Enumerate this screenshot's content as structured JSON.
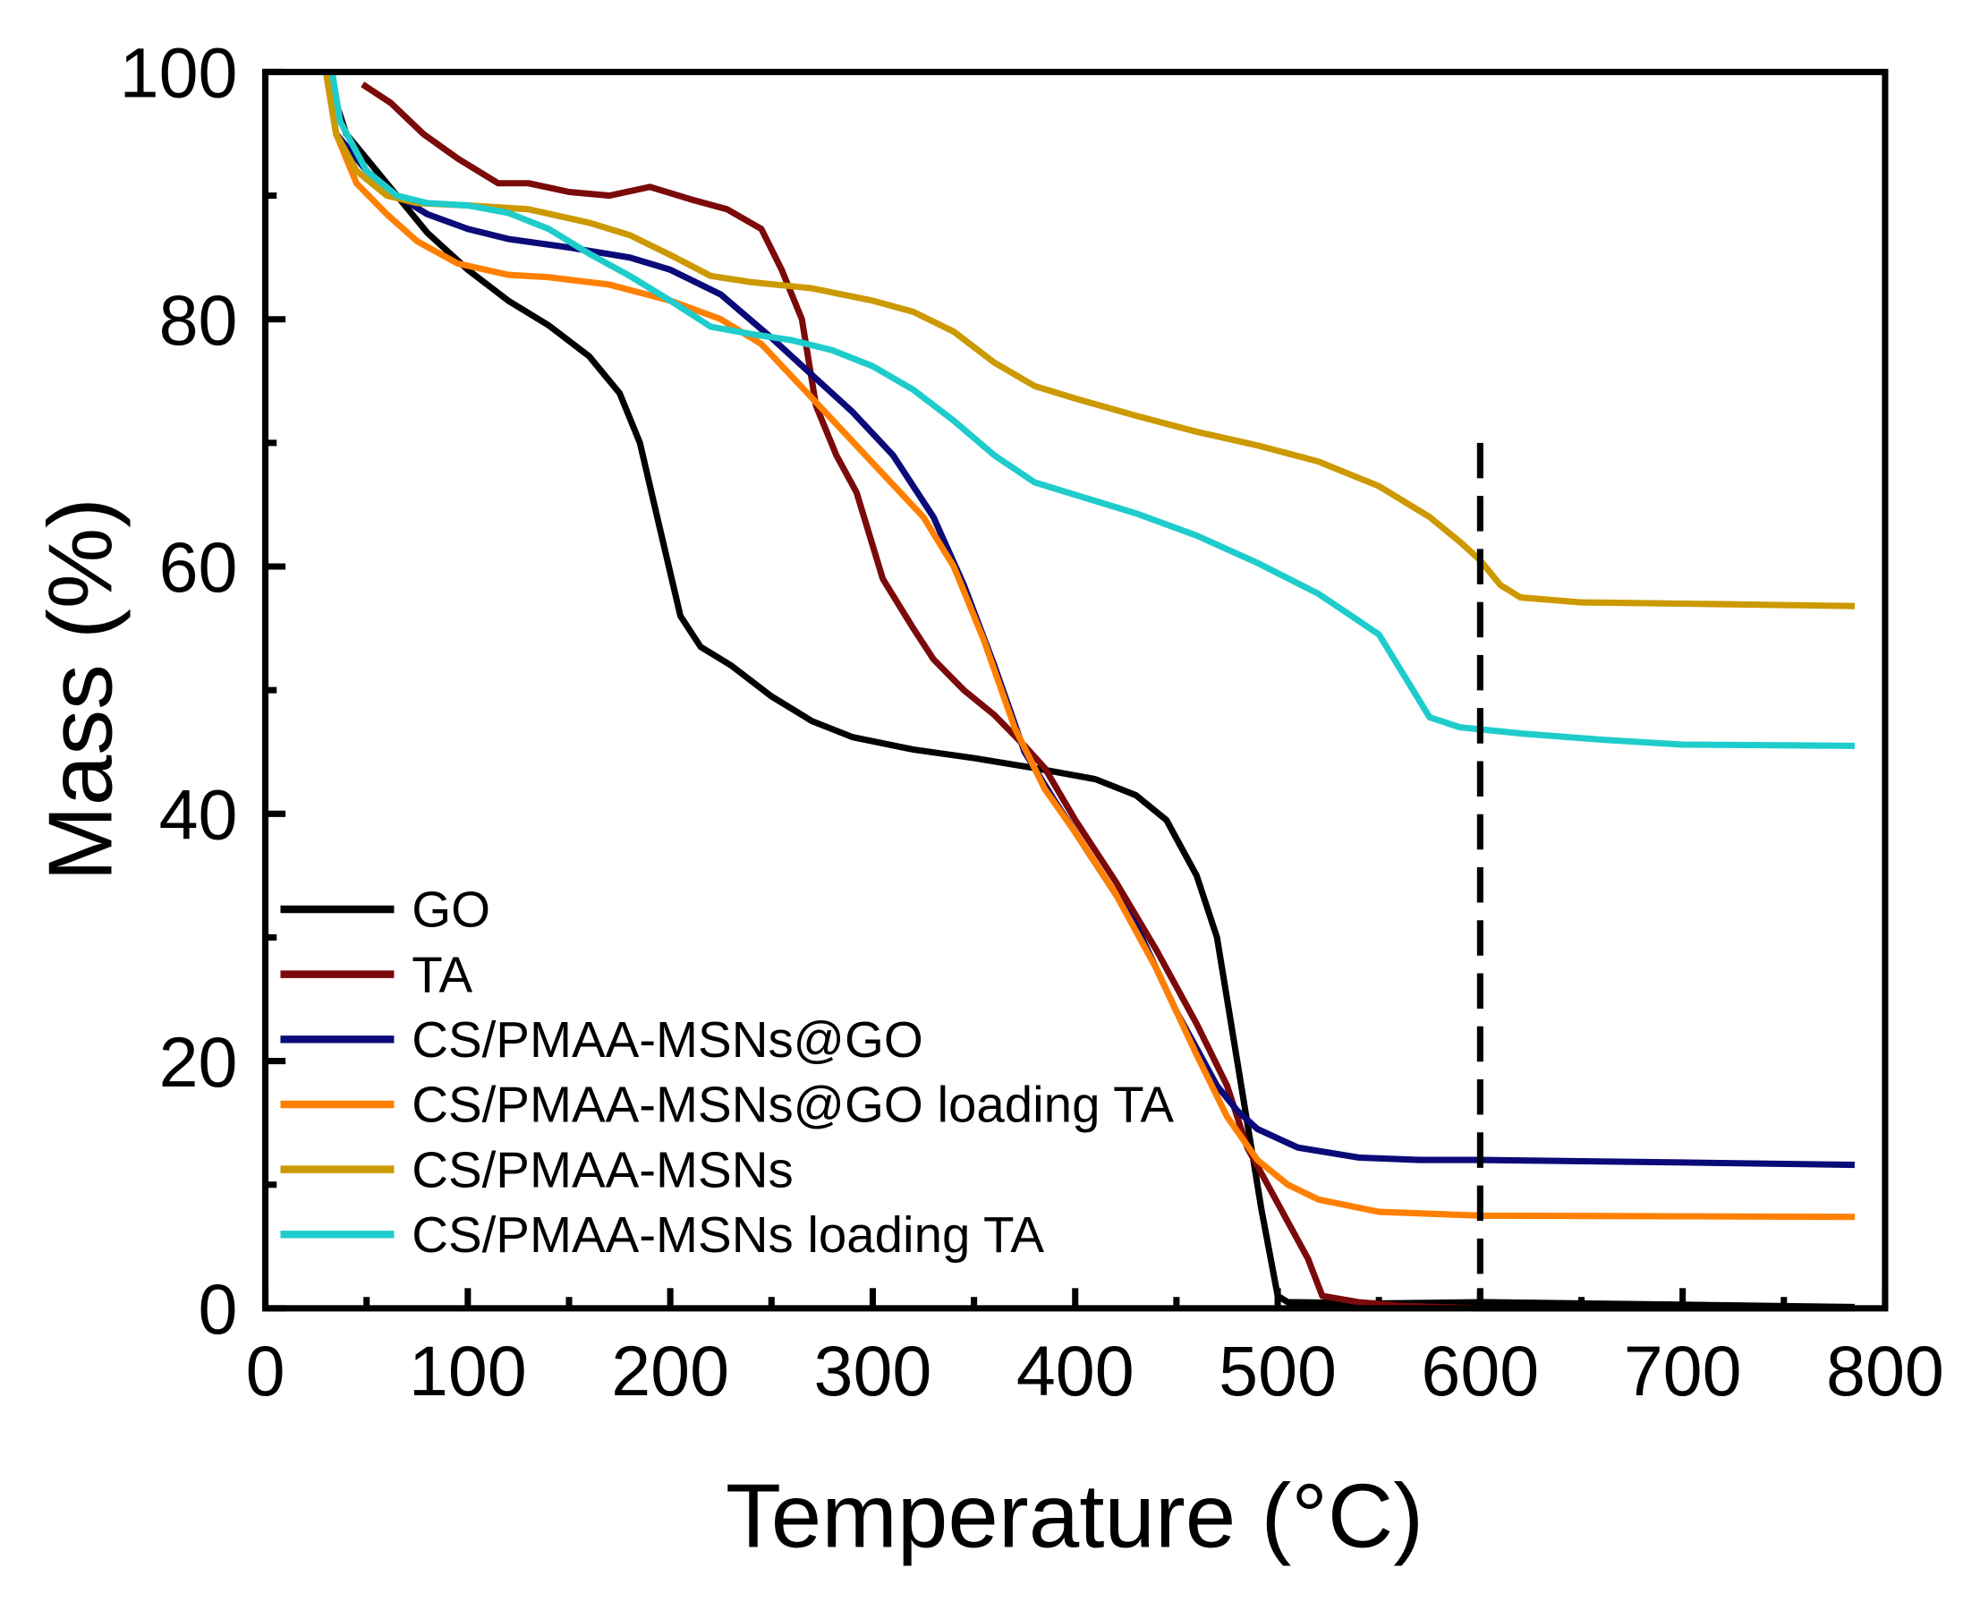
{
  "chart_data": {
    "type": "line",
    "title": "",
    "xlabel": "Temperature (°C)",
    "ylabel": "Mass (%)",
    "xlim": [
      0,
      800
    ],
    "ylim": [
      0,
      100
    ],
    "xticks": [
      "0",
      "100",
      "200",
      "300",
      "400",
      "500",
      "600",
      "700",
      "800"
    ],
    "yticks": [
      "0",
      "20",
      "40",
      "60",
      "80",
      "100"
    ],
    "grid": false,
    "legend_position": "bottom-left",
    "reference_line": {
      "x": 600,
      "y_range": [
        0,
        70
      ],
      "style": "dashed"
    },
    "series": [
      {
        "name": "GO",
        "color": "#000000",
        "points": [
          [
            30,
            100
          ],
          [
            40,
            95
          ],
          [
            60,
            91
          ],
          [
            80,
            87
          ],
          [
            100,
            84
          ],
          [
            120,
            81.5
          ],
          [
            140,
            79.5
          ],
          [
            160,
            77
          ],
          [
            175,
            74
          ],
          [
            185,
            70
          ],
          [
            195,
            63
          ],
          [
            205,
            56
          ],
          [
            215,
            53.5
          ],
          [
            230,
            52
          ],
          [
            250,
            49.5
          ],
          [
            270,
            47.5
          ],
          [
            290,
            46.2
          ],
          [
            320,
            45.2
          ],
          [
            350,
            44.5
          ],
          [
            380,
            43.7
          ],
          [
            410,
            42.8
          ],
          [
            430,
            41.5
          ],
          [
            445,
            39.5
          ],
          [
            460,
            35
          ],
          [
            470,
            30
          ],
          [
            478,
            22
          ],
          [
            485,
            15
          ],
          [
            492,
            8
          ],
          [
            500,
            1
          ],
          [
            505,
            0.5
          ],
          [
            550,
            0.4
          ],
          [
            600,
            0.5
          ],
          [
            700,
            0.3
          ],
          [
            785,
            0.1
          ]
        ]
      },
      {
        "name": "TA",
        "color": "#7b0a0a",
        "points": [
          [
            48,
            99
          ],
          [
            62,
            97.5
          ],
          [
            78,
            95
          ],
          [
            95,
            93
          ],
          [
            115,
            91
          ],
          [
            130,
            91
          ],
          [
            150,
            90.3
          ],
          [
            170,
            90
          ],
          [
            190,
            90.7
          ],
          [
            210,
            89.7
          ],
          [
            228,
            88.9
          ],
          [
            245,
            87.3
          ],
          [
            255,
            84
          ],
          [
            265,
            80
          ],
          [
            272,
            73
          ],
          [
            282,
            69
          ],
          [
            292,
            66
          ],
          [
            305,
            59
          ],
          [
            320,
            55
          ],
          [
            330,
            52.5
          ],
          [
            345,
            50
          ],
          [
            360,
            48
          ],
          [
            375,
            45.5
          ],
          [
            385,
            43.7
          ],
          [
            400,
            39.5
          ],
          [
            420,
            34.5
          ],
          [
            440,
            29
          ],
          [
            460,
            23
          ],
          [
            475,
            18
          ],
          [
            485,
            13
          ],
          [
            495,
            10
          ],
          [
            505,
            7
          ],
          [
            515,
            4
          ],
          [
            522,
            1
          ],
          [
            540,
            0.5
          ],
          [
            560,
            0.2
          ],
          [
            600,
            0
          ],
          [
            785,
            0
          ]
        ]
      },
      {
        "name": "CS/PMAA-MSNs@GO",
        "color": "#0a0a78",
        "points": [
          [
            30,
            100
          ],
          [
            35,
            95
          ],
          [
            50,
            92
          ],
          [
            65,
            90
          ],
          [
            80,
            88.5
          ],
          [
            100,
            87.3
          ],
          [
            120,
            86.5
          ],
          [
            150,
            85.8
          ],
          [
            180,
            85
          ],
          [
            200,
            84
          ],
          [
            225,
            82
          ],
          [
            250,
            78.5
          ],
          [
            270,
            75.5
          ],
          [
            290,
            72.5
          ],
          [
            310,
            69
          ],
          [
            330,
            64
          ],
          [
            345,
            58.5
          ],
          [
            360,
            52
          ],
          [
            375,
            45
          ],
          [
            390,
            41
          ],
          [
            410,
            36
          ],
          [
            430,
            31
          ],
          [
            450,
            24
          ],
          [
            470,
            18
          ],
          [
            480,
            16
          ],
          [
            490,
            14.5
          ],
          [
            510,
            13
          ],
          [
            540,
            12.2
          ],
          [
            570,
            12
          ],
          [
            600,
            12
          ],
          [
            700,
            11.8
          ],
          [
            785,
            11.6
          ]
        ]
      },
      {
        "name": "CS/PMAA-MSNs@GO loading TA",
        "color": "#ff8000",
        "points": [
          [
            30,
            100
          ],
          [
            35,
            95
          ],
          [
            45,
            91
          ],
          [
            60,
            88.5
          ],
          [
            75,
            86.3
          ],
          [
            95,
            84.5
          ],
          [
            120,
            83.6
          ],
          [
            140,
            83.4
          ],
          [
            170,
            82.8
          ],
          [
            200,
            81.5
          ],
          [
            225,
            80
          ],
          [
            245,
            78
          ],
          [
            265,
            74.5
          ],
          [
            285,
            71
          ],
          [
            305,
            67.5
          ],
          [
            325,
            64
          ],
          [
            340,
            60
          ],
          [
            355,
            54
          ],
          [
            370,
            47
          ],
          [
            385,
            42
          ],
          [
            400,
            38.5
          ],
          [
            420,
            33.5
          ],
          [
            440,
            27.5
          ],
          [
            460,
            20.5
          ],
          [
            475,
            15.5
          ],
          [
            490,
            12
          ],
          [
            505,
            10
          ],
          [
            520,
            8.8
          ],
          [
            550,
            7.8
          ],
          [
            600,
            7.5
          ],
          [
            785,
            7.4
          ]
        ]
      },
      {
        "name": "CS/PMAA-MSNs",
        "color": "#cc9900",
        "points": [
          [
            30,
            100
          ],
          [
            35,
            95
          ],
          [
            45,
            92
          ],
          [
            60,
            90
          ],
          [
            75,
            89.4
          ],
          [
            100,
            89.2
          ],
          [
            130,
            88.9
          ],
          [
            160,
            87.8
          ],
          [
            180,
            86.8
          ],
          [
            200,
            85.2
          ],
          [
            220,
            83.5
          ],
          [
            240,
            83
          ],
          [
            270,
            82.5
          ],
          [
            300,
            81.5
          ],
          [
            320,
            80.6
          ],
          [
            340,
            79
          ],
          [
            360,
            76.5
          ],
          [
            380,
            74.6
          ],
          [
            400,
            73.6
          ],
          [
            430,
            72.2
          ],
          [
            460,
            70.9
          ],
          [
            490,
            69.8
          ],
          [
            520,
            68.5
          ],
          [
            550,
            66.5
          ],
          [
            575,
            64
          ],
          [
            590,
            62
          ],
          [
            600,
            60.5
          ],
          [
            610,
            58.5
          ],
          [
            620,
            57.5
          ],
          [
            650,
            57.1
          ],
          [
            700,
            57
          ],
          [
            785,
            56.8
          ]
        ]
      },
      {
        "name": "CS/PMAA-MSNs loading TA",
        "color": "#1fcccc",
        "points": [
          [
            33,
            100
          ],
          [
            37,
            96
          ],
          [
            50,
            92
          ],
          [
            65,
            90
          ],
          [
            80,
            89.4
          ],
          [
            100,
            89.2
          ],
          [
            120,
            88.6
          ],
          [
            140,
            87.3
          ],
          [
            160,
            85.3
          ],
          [
            180,
            83.5
          ],
          [
            200,
            81.5
          ],
          [
            220,
            79.4
          ],
          [
            240,
            78.8
          ],
          [
            260,
            78.3
          ],
          [
            280,
            77.5
          ],
          [
            300,
            76.2
          ],
          [
            320,
            74.3
          ],
          [
            340,
            71.8
          ],
          [
            360,
            69
          ],
          [
            380,
            66.8
          ],
          [
            400,
            65.8
          ],
          [
            430,
            64.3
          ],
          [
            460,
            62.5
          ],
          [
            490,
            60.3
          ],
          [
            520,
            57.8
          ],
          [
            550,
            54.5
          ],
          [
            565,
            50.5
          ],
          [
            575,
            47.8
          ],
          [
            590,
            47
          ],
          [
            620,
            46.5
          ],
          [
            660,
            46
          ],
          [
            700,
            45.6
          ],
          [
            785,
            45.5
          ]
        ]
      }
    ]
  }
}
